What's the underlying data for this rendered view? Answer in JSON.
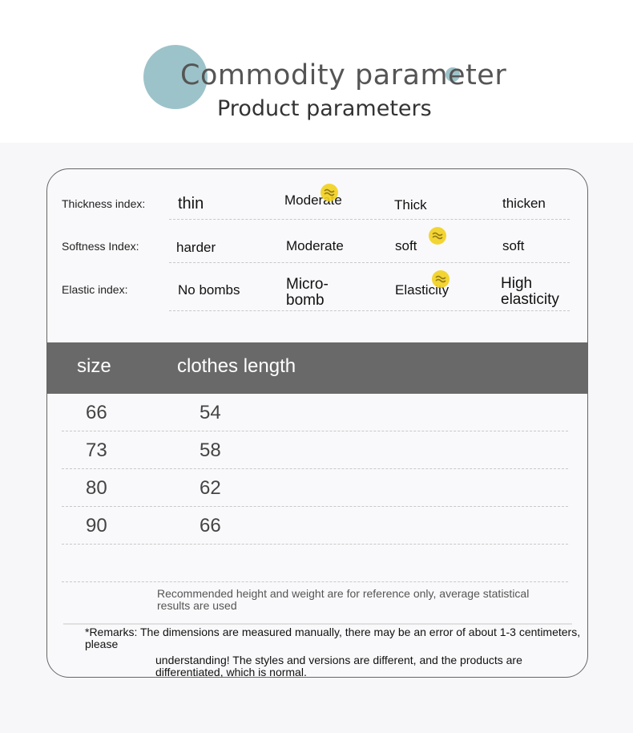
{
  "header": {
    "title": "Commodity parameter",
    "subtitle": "Product parameters"
  },
  "colors": {
    "accent_circle": "#9cc3c9",
    "table_header": "#696969",
    "marker": "#f2d21e"
  },
  "params": [
    {
      "label": "Thickness index:",
      "options": [
        "thin",
        "Moderate",
        "Thick",
        "thicken"
      ],
      "selected": 1
    },
    {
      "label": "Softness Index:",
      "options": [
        "harder",
        "Moderate",
        "soft",
        "soft"
      ],
      "selected": 2
    },
    {
      "label": "Elastic index:",
      "options": [
        "No bombs",
        "Micro-bomb",
        "Elasticity",
        "High elasticity"
      ],
      "selected": 2
    }
  ],
  "marker_icon": "wave-marker-icon",
  "size_table": {
    "columns": [
      "size",
      "clothes length"
    ],
    "rows": [
      [
        "66",
        "54"
      ],
      [
        "73",
        "58"
      ],
      [
        "80",
        "62"
      ],
      [
        "90",
        "66"
      ]
    ]
  },
  "notes": {
    "recommend": "Recommended height and weight are for reference only, average statistical results are used",
    "remarks_1": "*Remarks: The dimensions are measured manually, there may be an error of about 1-3 centimeters, please",
    "remarks_2": "understanding! The styles and versions are different, and the products are differentiated, which is normal."
  }
}
